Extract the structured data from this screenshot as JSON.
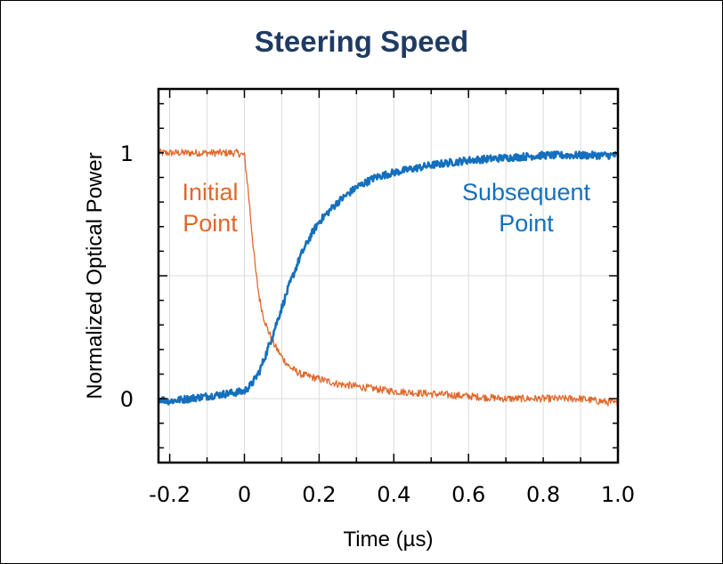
{
  "chart_data": {
    "type": "line",
    "title": "Steering Speed",
    "xlabel": "Time (µs)",
    "ylabel": "Normalized Optical Power",
    "xlim": [
      -0.23,
      1.0
    ],
    "ylim": [
      -0.26,
      1.26
    ],
    "x_ticks": [
      -0.2,
      0,
      0.2,
      0.4,
      0.6,
      0.8,
      1.0
    ],
    "x_tick_labels": [
      "-0.2",
      "0",
      "0.2",
      "0.4",
      "0.6",
      "0.8",
      "1.0"
    ],
    "y_ticks": [
      0,
      1
    ],
    "y_tick_labels": [
      "0",
      "1"
    ],
    "grid": true,
    "series": [
      {
        "name": "Initial Point",
        "color": "#e0682a",
        "x": [
          -0.23,
          -0.2,
          -0.1,
          -0.02,
          0.0,
          0.01,
          0.02,
          0.03,
          0.04,
          0.05,
          0.06,
          0.08,
          0.1,
          0.12,
          0.15,
          0.2,
          0.25,
          0.3,
          0.4,
          0.5,
          0.6,
          0.7,
          0.8,
          0.9,
          1.0
        ],
        "values": [
          1.0,
          1.0,
          1.0,
          1.0,
          0.99,
          0.85,
          0.68,
          0.52,
          0.41,
          0.34,
          0.29,
          0.22,
          0.17,
          0.13,
          0.1,
          0.08,
          0.06,
          0.05,
          0.03,
          0.02,
          0.01,
          0.0,
          0.0,
          0.0,
          -0.02
        ]
      },
      {
        "name": "Subsequent Point",
        "color": "#1470bd",
        "x": [
          -0.23,
          -0.2,
          -0.1,
          -0.05,
          0.0,
          0.02,
          0.04,
          0.06,
          0.08,
          0.1,
          0.12,
          0.15,
          0.18,
          0.2,
          0.25,
          0.3,
          0.35,
          0.4,
          0.5,
          0.6,
          0.7,
          0.8,
          0.9,
          1.0
        ],
        "values": [
          0.0,
          -0.01,
          0.01,
          0.02,
          0.03,
          0.06,
          0.11,
          0.19,
          0.28,
          0.37,
          0.46,
          0.58,
          0.67,
          0.72,
          0.8,
          0.86,
          0.9,
          0.92,
          0.95,
          0.97,
          0.98,
          0.99,
          0.99,
          0.99
        ]
      }
    ],
    "annotations": [
      {
        "lines": [
          "Initial",
          "Point"
        ],
        "color": "#e0682a"
      },
      {
        "lines": [
          "Subsequent",
          "Point"
        ],
        "color": "#1470bd"
      }
    ]
  }
}
